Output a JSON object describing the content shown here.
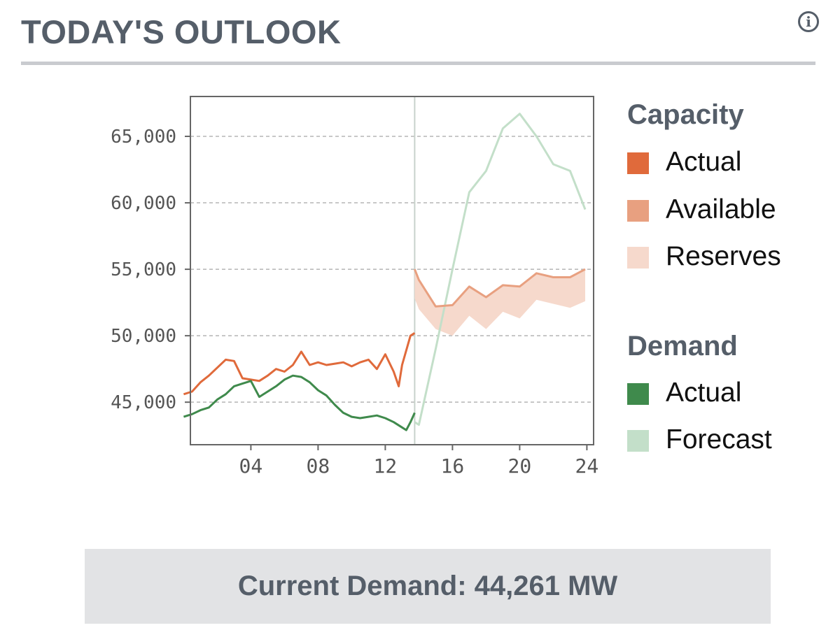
{
  "header": {
    "title": "TODAY'S OUTLOOK",
    "info_icon": "info-icon"
  },
  "colors": {
    "capacity_actual": "#e06a3b",
    "capacity_available": "#e8a080",
    "capacity_reserves": "#f6d9cc",
    "demand_actual": "#3f8a4c",
    "demand_forecast": "#c3dfc9"
  },
  "legend": {
    "capacity_heading": "Capacity",
    "capacity_items": [
      {
        "label": "Actual",
        "color": "#e06a3b"
      },
      {
        "label": "Available",
        "color": "#e8a080"
      },
      {
        "label": "Reserves",
        "color": "#f6d9cc"
      }
    ],
    "demand_heading": "Demand",
    "demand_items": [
      {
        "label": "Actual",
        "color": "#3f8a4c"
      },
      {
        "label": "Forecast",
        "color": "#c3dfc9"
      }
    ]
  },
  "status": {
    "text": "Current Demand: 44,261 MW"
  },
  "chart_data": {
    "type": "line",
    "xlim": [
      0,
      24
    ],
    "ylim": [
      41800,
      68000
    ],
    "x_ticks": [
      4,
      8,
      12,
      16,
      20,
      24
    ],
    "x_tick_labels": [
      "04",
      "08",
      "12",
      "16",
      "20",
      "24"
    ],
    "y_ticks": [
      45000,
      50000,
      55000,
      60000,
      65000
    ],
    "y_tick_labels": [
      "45,000",
      "50,000",
      "55,000",
      "60,000",
      "65,000"
    ],
    "grid": "horizontal dashed",
    "current_time_marker": 13.75,
    "legend_position": "right",
    "series": [
      {
        "name": "Actual",
        "group": "Capacity",
        "style": "line",
        "x": [
          0,
          0.5,
          1,
          1.5,
          2,
          2.5,
          3,
          3.5,
          4,
          4.5,
          5,
          5.5,
          6,
          6.5,
          7,
          7.5,
          8,
          8.5,
          9,
          9.5,
          10,
          10.5,
          11,
          11.5,
          12,
          12.5,
          12.8,
          13,
          13.5,
          13.75
        ],
        "y": [
          45600,
          45800,
          46500,
          47000,
          47600,
          48200,
          48100,
          46800,
          46700,
          46600,
          47000,
          47500,
          47300,
          47800,
          48800,
          47800,
          48000,
          47800,
          47900,
          48000,
          47700,
          48000,
          48200,
          47500,
          48600,
          47300,
          46200,
          47800,
          50000,
          50200
        ]
      },
      {
        "name": "Actual",
        "group": "Demand",
        "style": "line",
        "x": [
          0,
          0.5,
          1,
          1.5,
          2,
          2.5,
          3,
          3.5,
          4,
          4.5,
          5,
          5.5,
          6,
          6.5,
          7,
          7.5,
          8,
          8.5,
          9,
          9.5,
          10,
          10.5,
          11,
          11.5,
          12,
          12.5,
          13,
          13.25,
          13.5,
          13.75
        ],
        "y": [
          43900,
          44100,
          44400,
          44600,
          45200,
          45600,
          46200,
          46400,
          46600,
          45400,
          45800,
          46200,
          46700,
          47000,
          46900,
          46500,
          45900,
          45500,
          44800,
          44200,
          43900,
          43800,
          43900,
          44000,
          43800,
          43500,
          43100,
          42900,
          43500,
          44200
        ]
      },
      {
        "name": "Forecast",
        "group": "Demand",
        "style": "line",
        "x": [
          13.75,
          14,
          15,
          16,
          17,
          18,
          19,
          20,
          21,
          22,
          23,
          23.9
        ],
        "y": [
          43500,
          43300,
          49000,
          55000,
          60800,
          62400,
          65600,
          66700,
          65000,
          62900,
          62400,
          59500
        ]
      },
      {
        "name": "Available",
        "group": "Capacity",
        "style": "upper band edge",
        "x": [
          13.75,
          14,
          15,
          16,
          17,
          18,
          19,
          20,
          21,
          22,
          23,
          23.9
        ],
        "y": [
          55000,
          54200,
          52200,
          52300,
          53700,
          52900,
          53800,
          53700,
          54700,
          54400,
          54400,
          55000
        ]
      },
      {
        "name": "Reserves",
        "group": "Capacity",
        "style": "band lower edge",
        "x": [
          13.75,
          14,
          15,
          16,
          17,
          18,
          19,
          20,
          21,
          22,
          23,
          23.9
        ],
        "y": [
          52800,
          52000,
          50500,
          50000,
          51500,
          50500,
          51800,
          51300,
          52700,
          52400,
          52100,
          52600
        ]
      }
    ]
  }
}
